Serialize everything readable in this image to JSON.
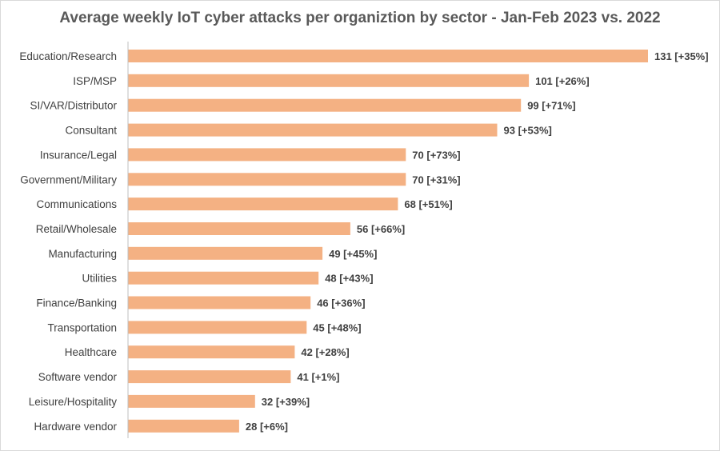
{
  "chart_data": {
    "type": "bar",
    "orientation": "horizontal",
    "title": "Average weekly IoT cyber attacks per organiztion by sector - Jan-Feb 2023 vs. 2022",
    "categories": [
      "Education/Research",
      "ISP/MSP",
      "SI/VAR/Distributor",
      "Consultant",
      "Insurance/Legal",
      "Government/Military",
      "Communications",
      "Retail/Wholesale",
      "Manufacturing",
      "Utilities",
      "Finance/Banking",
      "Transportation",
      "Healthcare",
      "Software vendor",
      "Leisure/Hospitality",
      "Hardware vendor"
    ],
    "values": [
      131,
      101,
      99,
      93,
      70,
      70,
      68,
      56,
      49,
      48,
      46,
      45,
      42,
      41,
      32,
      28
    ],
    "data_labels": [
      "131 [+35%]",
      "101 [+26%]",
      "99 [+71%]",
      "93 [+53%]",
      "70 [+73%]",
      "70 [+31%]",
      "68 [+51%]",
      "56 [+66%]",
      "49 [+45%]",
      "48 [+43%]",
      "46 [+36%]",
      "45 [+48%]",
      "42 [+28%]",
      "41 [+1%]",
      "32 [+39%]",
      "28 [+6%]"
    ],
    "xlim": [
      0,
      131
    ],
    "grid": false,
    "legend": "none",
    "bar_color": "#f4b183",
    "axis_color": "#bfbfbf",
    "text_color": "#404040",
    "title_color": "#595959"
  }
}
